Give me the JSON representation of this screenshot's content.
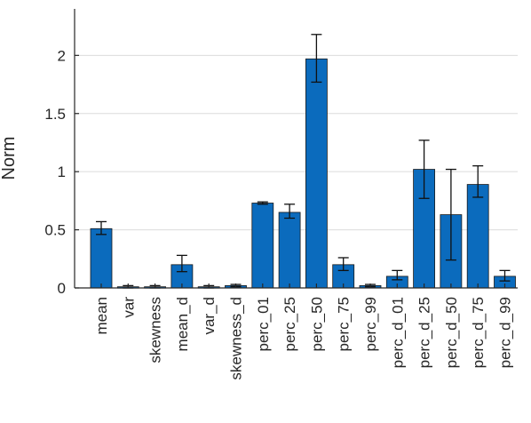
{
  "chart_data": {
    "type": "bar",
    "ylabel": "Norm",
    "xlabel": "",
    "title": "",
    "ylim": [
      0,
      2.4
    ],
    "yticks": [
      0,
      0.5,
      1,
      1.5,
      2
    ],
    "grid": "horizontal",
    "bar_color": "#0b6bbd",
    "categories": [
      "mean",
      "var",
      "skewness",
      "mean_d",
      "var_d",
      "skewness_d",
      "perc_01",
      "perc_25",
      "perc_50",
      "perc_75",
      "perc_99",
      "perc_d_01",
      "perc_d_25",
      "perc_d_50",
      "perc_d_75",
      "perc_d_99"
    ],
    "values": [
      0.51,
      0.01,
      0.01,
      0.2,
      0.01,
      0.02,
      0.73,
      0.65,
      1.97,
      0.2,
      0.02,
      0.1,
      1.02,
      0.63,
      0.89,
      0.1
    ],
    "error_low": [
      0.46,
      0.0,
      0.0,
      0.14,
      0.0,
      0.01,
      0.72,
      0.6,
      1.77,
      0.15,
      0.01,
      0.07,
      0.77,
      0.24,
      0.78,
      0.06
    ],
    "error_high": [
      0.57,
      0.02,
      0.02,
      0.28,
      0.02,
      0.03,
      0.74,
      0.72,
      2.18,
      0.26,
      0.03,
      0.15,
      1.27,
      1.02,
      1.05,
      0.15
    ]
  }
}
